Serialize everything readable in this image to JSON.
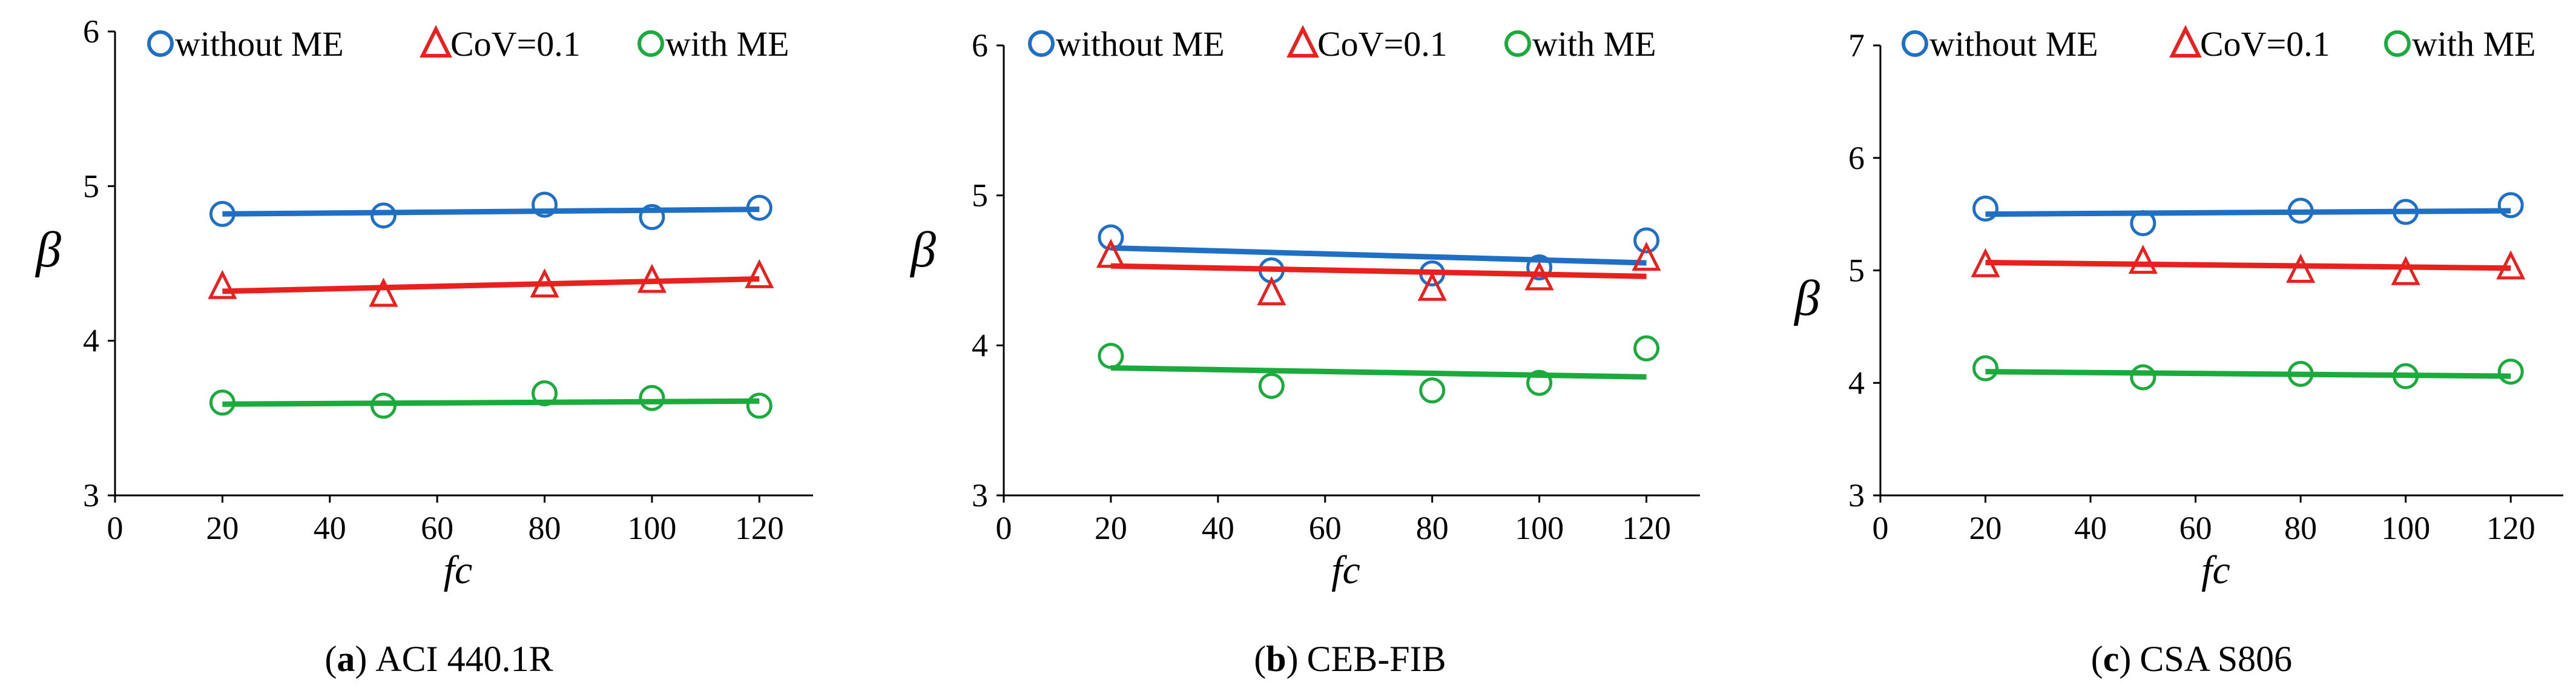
{
  "chart_data": [
    {
      "type": "scatter",
      "panel_letter": "a",
      "caption_prefix": "(",
      "caption_suffix": ")",
      "caption_text": "ACI 440.1R",
      "xlabel": "fc",
      "ylabel": "β",
      "xlim": [
        0,
        130
      ],
      "ylim": [
        3,
        6
      ],
      "xticks": [
        "0",
        "20",
        "40",
        "60",
        "80",
        "100",
        "120"
      ],
      "yticks": [
        "3",
        "4",
        "5",
        "6"
      ],
      "legend": [
        "without ME",
        "CoV=0.1",
        "with ME"
      ],
      "legend_position": "top",
      "x": [
        20,
        50,
        80,
        100,
        120
      ],
      "series": [
        {
          "name": "without ME",
          "marker": "circle",
          "color": "#1F6FC5",
          "values": [
            4.82,
            4.81,
            4.88,
            4.8,
            4.86
          ],
          "trend": [
            4.82,
            4.85
          ]
        },
        {
          "name": "CoV=0.1",
          "marker": "triangle",
          "color": "#E8201E",
          "values": [
            4.35,
            4.3,
            4.36,
            4.39,
            4.42
          ],
          "trend": [
            4.32,
            4.4
          ]
        },
        {
          "name": "with ME",
          "marker": "circle",
          "color": "#1BAA3C",
          "values": [
            3.6,
            3.58,
            3.66,
            3.63,
            3.58
          ],
          "trend": [
            3.59,
            3.61
          ]
        }
      ]
    },
    {
      "type": "scatter",
      "panel_letter": "b",
      "caption_prefix": "(",
      "caption_suffix": ")",
      "caption_text": "CEB-FIB",
      "xlabel": "fc",
      "ylabel": "β",
      "xlim": [
        0,
        130
      ],
      "ylim": [
        3,
        6
      ],
      "xticks": [
        "0",
        "20",
        "40",
        "60",
        "80",
        "100",
        "120"
      ],
      "yticks": [
        "3",
        "4",
        "5",
        "6"
      ],
      "legend": [
        "without ME",
        "CoV=0.1",
        "with ME"
      ],
      "legend_position": "top",
      "x": [
        20,
        50,
        80,
        100,
        120
      ],
      "series": [
        {
          "name": "without ME",
          "marker": "circle",
          "color": "#1F6FC5",
          "values": [
            4.72,
            4.5,
            4.48,
            4.52,
            4.7
          ],
          "trend": [
            4.65,
            4.55
          ]
        },
        {
          "name": "CoV=0.1",
          "marker": "triangle",
          "color": "#E8201E",
          "values": [
            4.6,
            4.35,
            4.38,
            4.45,
            4.58
          ],
          "trend": [
            4.53,
            4.46
          ]
        },
        {
          "name": "with ME",
          "marker": "circle",
          "color": "#1BAA3C",
          "values": [
            3.93,
            3.73,
            3.7,
            3.75,
            3.98
          ],
          "trend": [
            3.85,
            3.79
          ]
        }
      ]
    },
    {
      "type": "scatter",
      "panel_letter": "c",
      "caption_prefix": "(",
      "caption_suffix": ")",
      "caption_text": "CSA S806",
      "xlabel": "fc",
      "ylabel": "β",
      "xlim": [
        0,
        130
      ],
      "ylim": [
        3,
        7
      ],
      "xticks": [
        "0",
        "20",
        "40",
        "60",
        "80",
        "100",
        "120"
      ],
      "yticks": [
        "3",
        "4",
        "5",
        "6",
        "7"
      ],
      "legend": [
        "without ME",
        "CoV=0.1",
        "with ME"
      ],
      "legend_position": "top",
      "x": [
        20,
        50,
        80,
        100,
        120
      ],
      "series": [
        {
          "name": "without ME",
          "marker": "circle",
          "color": "#1F6FC5",
          "values": [
            5.55,
            5.42,
            5.53,
            5.52,
            5.58
          ],
          "trend": [
            5.5,
            5.53
          ]
        },
        {
          "name": "CoV=0.1",
          "marker": "triangle",
          "color": "#E8201E",
          "values": [
            5.05,
            5.08,
            5.0,
            4.98,
            5.03
          ],
          "trend": [
            5.07,
            5.02
          ]
        },
        {
          "name": "with ME",
          "marker": "circle",
          "color": "#1BAA3C",
          "values": [
            4.13,
            4.05,
            4.08,
            4.06,
            4.1
          ],
          "trend": [
            4.1,
            4.06
          ]
        }
      ]
    }
  ]
}
